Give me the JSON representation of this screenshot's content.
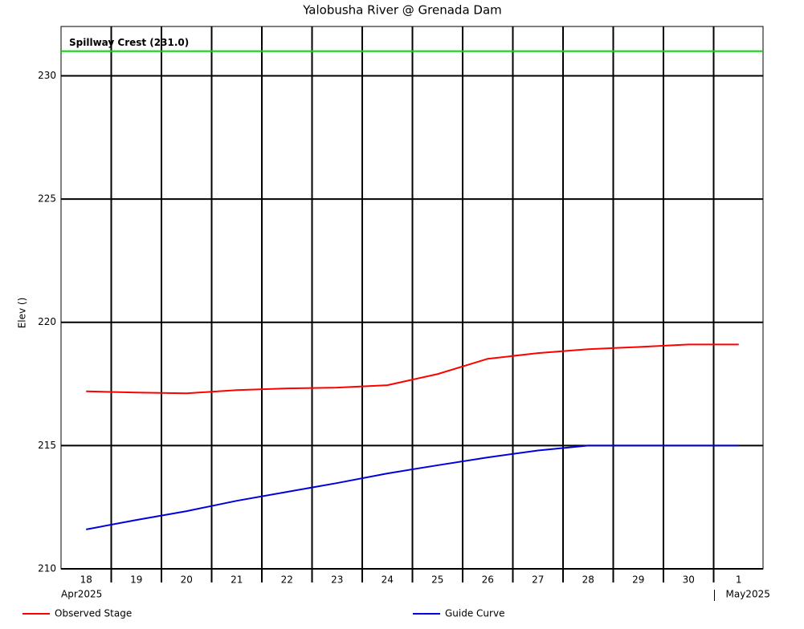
{
  "chart_data": {
    "type": "line",
    "title": "Yalobusha River @ Grenada Dam",
    "ylabel": "Elev ()",
    "categories": [
      "18",
      "19",
      "20",
      "21",
      "22",
      "23",
      "24",
      "25",
      "26",
      "27",
      "28",
      "29",
      "30",
      "1"
    ],
    "month_labels": [
      "Apr2025",
      "May2025"
    ],
    "series": [
      {
        "name": "Observed Stage",
        "color": "#ff0000",
        "values": [
          217.2,
          217.15,
          217.12,
          217.25,
          217.32,
          217.35,
          217.45,
          217.9,
          218.52,
          218.75,
          218.91,
          219.0,
          219.1,
          219.1
        ]
      },
      {
        "name": "Guide Curve",
        "color": "#0000dd",
        "values": [
          211.6,
          211.98,
          212.34,
          212.76,
          213.12,
          213.48,
          213.87,
          214.2,
          214.52,
          214.8,
          215,
          215,
          215,
          215
        ]
      }
    ],
    "reference_lines": [
      {
        "label": "Spillway Crest (231.0)",
        "value": 231,
        "color": "#00dd00"
      }
    ],
    "ylim": [
      210,
      232
    ],
    "yticks": [
      210,
      215,
      220,
      225,
      230
    ],
    "grid": true
  }
}
